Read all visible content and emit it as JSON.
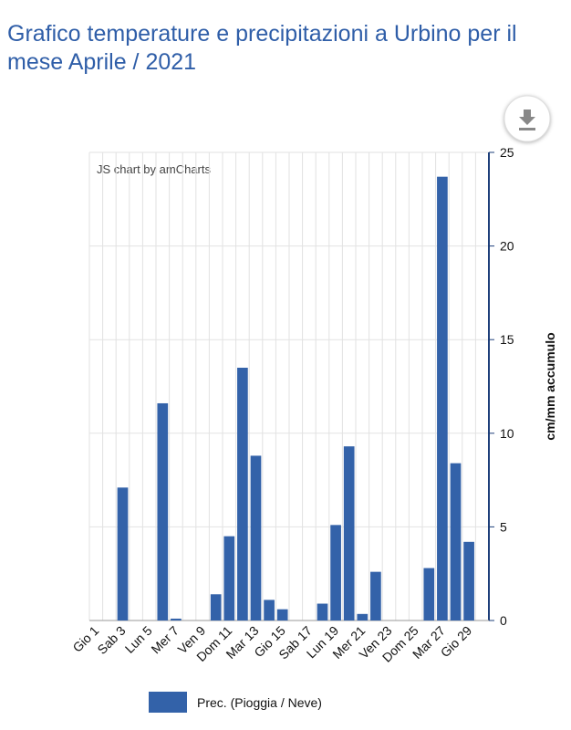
{
  "chart_data": {
    "type": "bar",
    "title": "Grafico temperature e precipitazioni a Urbino per il mese Aprile / 2021",
    "credit": "JS chart by amCharts",
    "y_label": "cm/mm accumulo",
    "categories": [
      "Gio 1",
      null,
      "Sab 3",
      null,
      "Lun 5",
      null,
      "Mer 7",
      null,
      "Ven 9",
      null,
      "Dom 11",
      null,
      "Mar 13",
      null,
      "Gio 15",
      null,
      "Sab 17",
      null,
      "Lun 19",
      null,
      "Mer 21",
      null,
      "Ven 23",
      null,
      "Dom 25",
      null,
      "Mar 27",
      null,
      "Gio 29",
      null
    ],
    "series": [
      {
        "name": "Prec. (Pioggia / Neve)",
        "color": "#3362a9",
        "values": [
          0,
          0,
          7.1,
          0,
          0,
          11.6,
          0.1,
          0,
          0,
          1.4,
          4.5,
          13.5,
          8.8,
          1.1,
          0.6,
          0,
          0,
          0.9,
          5.1,
          9.3,
          0.35,
          2.6,
          0,
          0,
          0,
          2.8,
          23.7,
          8.4,
          4.2,
          0
        ]
      }
    ],
    "ylim": [
      0,
      25
    ],
    "yticks": [
      0,
      5,
      10,
      15,
      20,
      25
    ],
    "grid": true,
    "legend": "bottom"
  }
}
